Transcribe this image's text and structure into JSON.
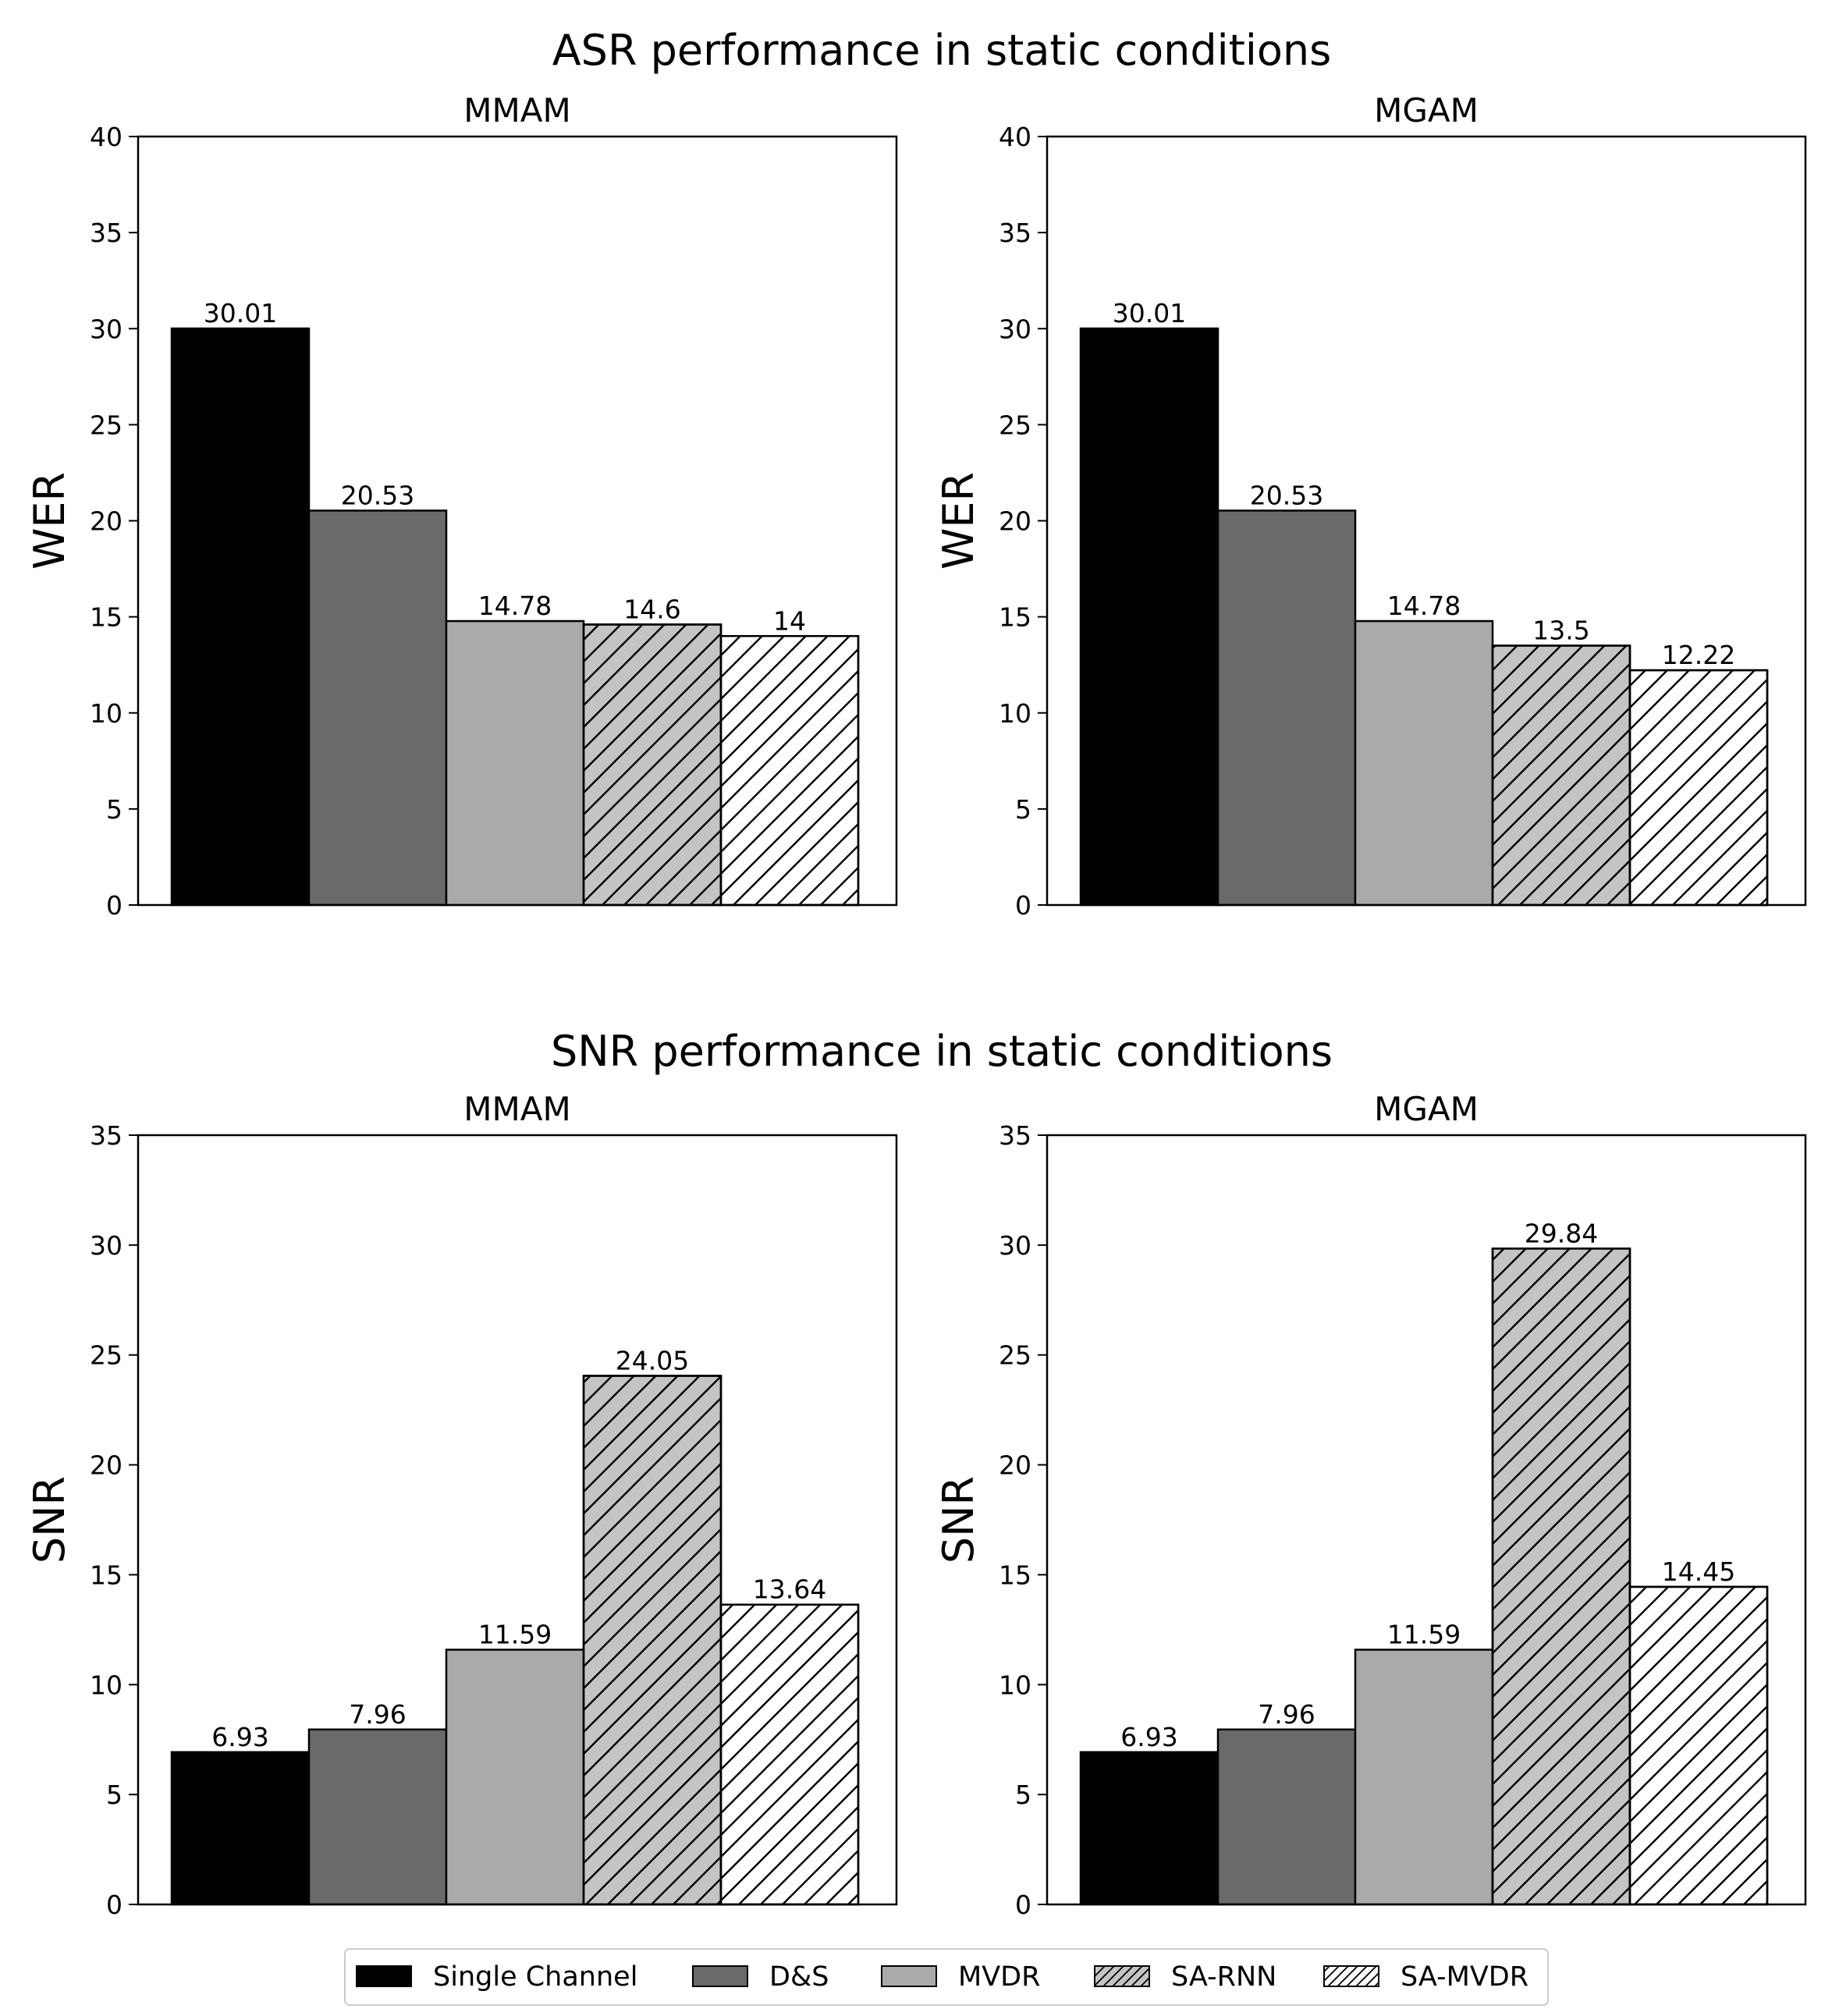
{
  "colors": {
    "single_channel": "#000000",
    "ds": "#6a6a6a",
    "mvdr": "#aaaaaa",
    "sa_rnn": "#c4c4c4",
    "sa_mvdr": "#ffffff"
  },
  "legend": [
    {
      "label": "Single Channel",
      "color": "#000000",
      "hatch": false
    },
    {
      "label": "D&S",
      "color": "#6a6a6a",
      "hatch": false
    },
    {
      "label": "MVDR",
      "color": "#aaaaaa",
      "hatch": false
    },
    {
      "label": "SA-RNN",
      "color": "#c4c4c4",
      "hatch": true
    },
    {
      "label": "SA-MVDR",
      "color": "#ffffff",
      "hatch": true
    }
  ],
  "rows": [
    {
      "title": "ASR performance in static conditions"
    },
    {
      "title": "SNR performance in static conditions"
    }
  ],
  "chart_data": [
    {
      "type": "bar",
      "row": 0,
      "title": "MMAM",
      "ylabel": "WER",
      "ylim": [
        0,
        40
      ],
      "yticks": [
        "0",
        "5",
        "10",
        "15",
        "20",
        "25",
        "30",
        "35",
        "40"
      ],
      "categories": [
        "Single Channel",
        "D&S",
        "MVDR",
        "SA-RNN",
        "SA-MVDR"
      ],
      "values": [
        30.01,
        20.53,
        14.78,
        14.6,
        14
      ],
      "labels": [
        "30.01",
        "20.53",
        "14.78",
        "14.6",
        "14"
      ]
    },
    {
      "type": "bar",
      "row": 0,
      "title": "MGAM",
      "ylabel": "WER",
      "ylim": [
        0,
        40
      ],
      "yticks": [
        "0",
        "5",
        "10",
        "15",
        "20",
        "25",
        "30",
        "35",
        "40"
      ],
      "categories": [
        "Single Channel",
        "D&S",
        "MVDR",
        "SA-RNN",
        "SA-MVDR"
      ],
      "values": [
        30.01,
        20.53,
        14.78,
        13.5,
        12.22
      ],
      "labels": [
        "30.01",
        "20.53",
        "14.78",
        "13.5",
        "12.22"
      ]
    },
    {
      "type": "bar",
      "row": 1,
      "title": "MMAM",
      "ylabel": "SNR",
      "ylim": [
        0,
        35
      ],
      "yticks": [
        "0",
        "5",
        "10",
        "15",
        "20",
        "25",
        "30",
        "35"
      ],
      "categories": [
        "Single Channel",
        "D&S",
        "MVDR",
        "SA-RNN",
        "SA-MVDR"
      ],
      "values": [
        6.93,
        7.96,
        11.59,
        24.05,
        13.64
      ],
      "labels": [
        "6.93",
        "7.96",
        "11.59",
        "24.05",
        "13.64"
      ]
    },
    {
      "type": "bar",
      "row": 1,
      "title": "MGAM",
      "ylabel": "SNR",
      "ylim": [
        0,
        35
      ],
      "yticks": [
        "0",
        "5",
        "10",
        "15",
        "20",
        "25",
        "30",
        "35"
      ],
      "categories": [
        "Single Channel",
        "D&S",
        "MVDR",
        "SA-RNN",
        "SA-MVDR"
      ],
      "values": [
        6.93,
        7.96,
        11.59,
        29.84,
        14.45
      ],
      "labels": [
        "6.93",
        "7.96",
        "11.59",
        "29.84",
        "14.45"
      ]
    }
  ]
}
